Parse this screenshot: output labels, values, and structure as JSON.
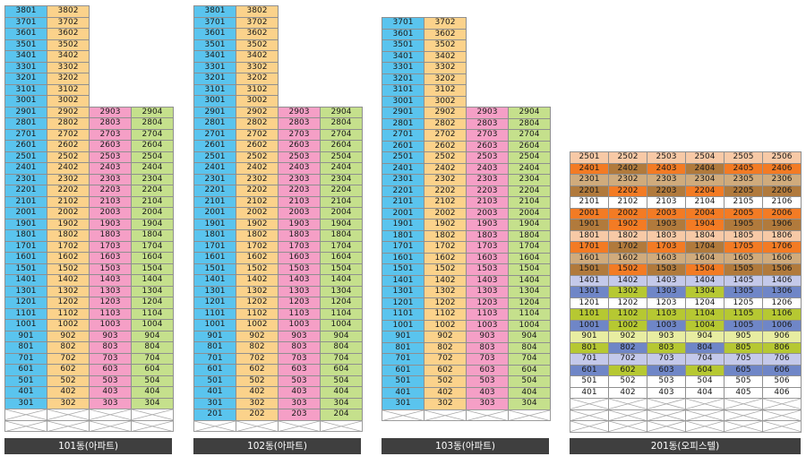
{
  "colors": {
    "apt": [
      "#5ac4ee",
      "#fbd28b",
      "#f59fc6",
      "#c5e08c"
    ],
    "office": {
      "peach": "#f7c9a6",
      "orange": "#f37b24",
      "tan": "#d0ab7c",
      "brown": "#b17a3c",
      "lavender": "#c4c9ea",
      "blue": "#6f86c7",
      "olive": "#b6c832",
      "pale_yellow": "#e8eda1",
      "white": "#ffffff"
    }
  },
  "buildings": [
    {
      "label": "101동(아파트)",
      "top_floor": 38,
      "bottom_floor": 3,
      "tall_cols": 2,
      "wide_top_floor": 29,
      "wide_cols": 4,
      "pilot_rows": 2
    },
    {
      "label": "102동(아파트)",
      "top_floor": 38,
      "bottom_floor": 2,
      "tall_cols": 2,
      "wide_top_floor": 29,
      "wide_cols": 4,
      "pilot_rows": 1
    },
    {
      "label": "103동(아파트)",
      "top_floor": 37,
      "bottom_floor": 3,
      "tall_cols": 2,
      "wide_top_floor": 29,
      "wide_cols": 4,
      "pilot_rows": 1
    },
    {
      "label": "201동(오피스텔)",
      "top_floor": 25,
      "bottom_floor": 4,
      "tall_cols": 6,
      "wide_top_floor": 25,
      "wide_cols": 6,
      "pilot_rows": 3,
      "office_rows": [
        [
          "peach",
          "peach",
          "peach",
          "peach",
          "peach",
          "peach"
        ],
        [
          "orange",
          "brown",
          "orange",
          "brown",
          "orange",
          "orange"
        ],
        [
          "tan",
          "tan",
          "tan",
          "tan",
          "tan",
          "tan"
        ],
        [
          "brown",
          "orange",
          "brown",
          "orange",
          "brown",
          "brown"
        ],
        [
          "white",
          "white",
          "white",
          "white",
          "white",
          "white"
        ],
        [
          "orange",
          "orange",
          "orange",
          "orange",
          "orange",
          "orange"
        ],
        [
          "brown",
          "orange",
          "brown",
          "orange",
          "brown",
          "brown"
        ],
        [
          "peach",
          "peach",
          "peach",
          "peach",
          "peach",
          "peach"
        ],
        [
          "orange",
          "brown",
          "orange",
          "brown",
          "orange",
          "orange"
        ],
        [
          "tan",
          "tan",
          "tan",
          "tan",
          "tan",
          "tan"
        ],
        [
          "brown",
          "orange",
          "brown",
          "orange",
          "brown",
          "brown"
        ],
        [
          "lavender",
          "lavender",
          "lavender",
          "lavender",
          "lavender",
          "lavender"
        ],
        [
          "blue",
          "olive",
          "blue",
          "olive",
          "blue",
          "blue"
        ],
        [
          "white",
          "white",
          "white",
          "white",
          "white",
          "white"
        ],
        [
          "olive",
          "olive",
          "olive",
          "olive",
          "olive",
          "olive"
        ],
        [
          "blue",
          "olive",
          "blue",
          "olive",
          "blue",
          "blue"
        ],
        [
          "pale_yellow",
          "pale_yellow",
          "pale_yellow",
          "pale_yellow",
          "pale_yellow",
          "pale_yellow"
        ],
        [
          "olive",
          "blue",
          "olive",
          "blue",
          "olive",
          "olive"
        ],
        [
          "lavender",
          "lavender",
          "lavender",
          "lavender",
          "lavender",
          "lavender"
        ],
        [
          "blue",
          "olive",
          "blue",
          "olive",
          "blue",
          "blue"
        ],
        [
          "white",
          "white",
          "white",
          "white",
          "white",
          "white"
        ],
        [
          "white",
          "white",
          "white",
          "white",
          "white",
          "white"
        ]
      ]
    }
  ]
}
